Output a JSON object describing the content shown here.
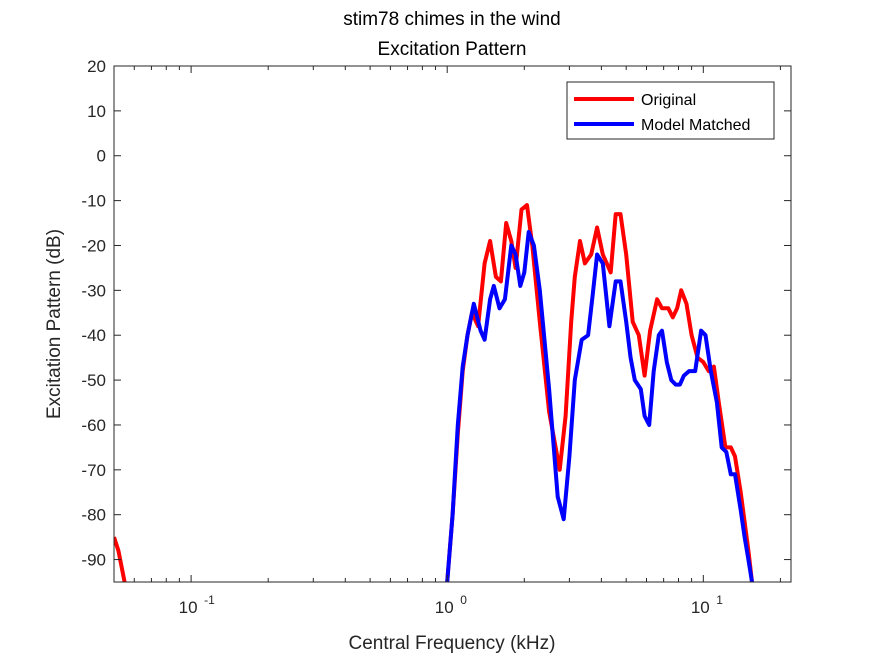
{
  "chart_data": {
    "type": "line",
    "title": "stim78 chimes in the wind",
    "subtitle": "Excitation Pattern",
    "xlabel": "Central Frequency (kHz)",
    "ylabel": "Excitation Pattern (dB)",
    "xscale": "log",
    "xlim": [
      0.05,
      22
    ],
    "ylim": [
      -95,
      20
    ],
    "yticks": [
      20,
      10,
      0,
      -10,
      -20,
      -30,
      -40,
      -50,
      -60,
      -70,
      -80,
      -90
    ],
    "xticks": [
      {
        "value": 0.1,
        "base": "10",
        "exp": "-1"
      },
      {
        "value": 1,
        "base": "10",
        "exp": "0"
      },
      {
        "value": 10,
        "base": "10",
        "exp": "1"
      }
    ],
    "grid": false,
    "legend_position": "top-right",
    "series": [
      {
        "name": "Original",
        "color": "#ff0000",
        "points": [
          [
            0.05,
            -85
          ],
          [
            0.052,
            -88
          ],
          [
            0.055,
            -95
          ],
          [
            1.0,
            -95
          ],
          [
            1.05,
            -80
          ],
          [
            1.1,
            -62
          ],
          [
            1.15,
            -48
          ],
          [
            1.2,
            -40
          ],
          [
            1.25,
            -35
          ],
          [
            1.32,
            -38
          ],
          [
            1.4,
            -24
          ],
          [
            1.47,
            -19
          ],
          [
            1.55,
            -27
          ],
          [
            1.62,
            -28
          ],
          [
            1.7,
            -15
          ],
          [
            1.78,
            -19
          ],
          [
            1.85,
            -25
          ],
          [
            1.95,
            -12
          ],
          [
            2.05,
            -11
          ],
          [
            2.15,
            -20
          ],
          [
            2.3,
            -37
          ],
          [
            2.5,
            -57
          ],
          [
            2.75,
            -70
          ],
          [
            2.9,
            -58
          ],
          [
            3.05,
            -37
          ],
          [
            3.15,
            -27
          ],
          [
            3.3,
            -19
          ],
          [
            3.45,
            -24
          ],
          [
            3.65,
            -22
          ],
          [
            3.85,
            -16
          ],
          [
            4.05,
            -22
          ],
          [
            4.35,
            -26
          ],
          [
            4.55,
            -13
          ],
          [
            4.75,
            -13
          ],
          [
            5.0,
            -22
          ],
          [
            5.3,
            -37
          ],
          [
            5.6,
            -40
          ],
          [
            5.9,
            -49
          ],
          [
            6.2,
            -39
          ],
          [
            6.6,
            -32
          ],
          [
            6.9,
            -34
          ],
          [
            7.3,
            -34
          ],
          [
            7.6,
            -36
          ],
          [
            7.9,
            -34
          ],
          [
            8.2,
            -30
          ],
          [
            8.6,
            -33
          ],
          [
            9.0,
            -40
          ],
          [
            9.5,
            -45
          ],
          [
            10.0,
            -46
          ],
          [
            10.5,
            -48
          ],
          [
            11.0,
            -47
          ],
          [
            11.5,
            -55
          ],
          [
            12.2,
            -65
          ],
          [
            12.8,
            -65
          ],
          [
            13.3,
            -67
          ],
          [
            14.0,
            -75
          ],
          [
            15.0,
            -88
          ],
          [
            15.5,
            -95
          ]
        ]
      },
      {
        "name": "Model Matched",
        "color": "#0000ff",
        "points": [
          [
            1.0,
            -95
          ],
          [
            1.05,
            -80
          ],
          [
            1.1,
            -60
          ],
          [
            1.15,
            -47
          ],
          [
            1.2,
            -40
          ],
          [
            1.27,
            -33
          ],
          [
            1.35,
            -39
          ],
          [
            1.4,
            -41
          ],
          [
            1.47,
            -32
          ],
          [
            1.52,
            -29
          ],
          [
            1.6,
            -34
          ],
          [
            1.68,
            -32
          ],
          [
            1.78,
            -20
          ],
          [
            1.85,
            -22
          ],
          [
            1.93,
            -29
          ],
          [
            2.0,
            -26
          ],
          [
            2.08,
            -17
          ],
          [
            2.18,
            -20
          ],
          [
            2.3,
            -30
          ],
          [
            2.5,
            -52
          ],
          [
            2.7,
            -76
          ],
          [
            2.85,
            -81
          ],
          [
            3.0,
            -67
          ],
          [
            3.15,
            -50
          ],
          [
            3.35,
            -41
          ],
          [
            3.55,
            -40
          ],
          [
            3.7,
            -31
          ],
          [
            3.85,
            -22
          ],
          [
            4.05,
            -24
          ],
          [
            4.3,
            -38
          ],
          [
            4.55,
            -28
          ],
          [
            4.75,
            -28
          ],
          [
            5.0,
            -37
          ],
          [
            5.2,
            -45
          ],
          [
            5.4,
            -50
          ],
          [
            5.7,
            -52
          ],
          [
            5.9,
            -58
          ],
          [
            6.15,
            -60
          ],
          [
            6.4,
            -48
          ],
          [
            6.7,
            -40
          ],
          [
            6.9,
            -39
          ],
          [
            7.2,
            -46
          ],
          [
            7.5,
            -50
          ],
          [
            7.8,
            -51
          ],
          [
            8.1,
            -51
          ],
          [
            8.4,
            -49
          ],
          [
            8.8,
            -48
          ],
          [
            9.3,
            -48
          ],
          [
            9.8,
            -39
          ],
          [
            10.2,
            -40
          ],
          [
            10.7,
            -48
          ],
          [
            11.3,
            -55
          ],
          [
            11.8,
            -65
          ],
          [
            12.3,
            -66
          ],
          [
            12.8,
            -71
          ],
          [
            13.3,
            -71
          ],
          [
            14.0,
            -79
          ],
          [
            14.5,
            -85
          ],
          [
            15.0,
            -90
          ],
          [
            15.5,
            -95
          ]
        ]
      }
    ]
  }
}
